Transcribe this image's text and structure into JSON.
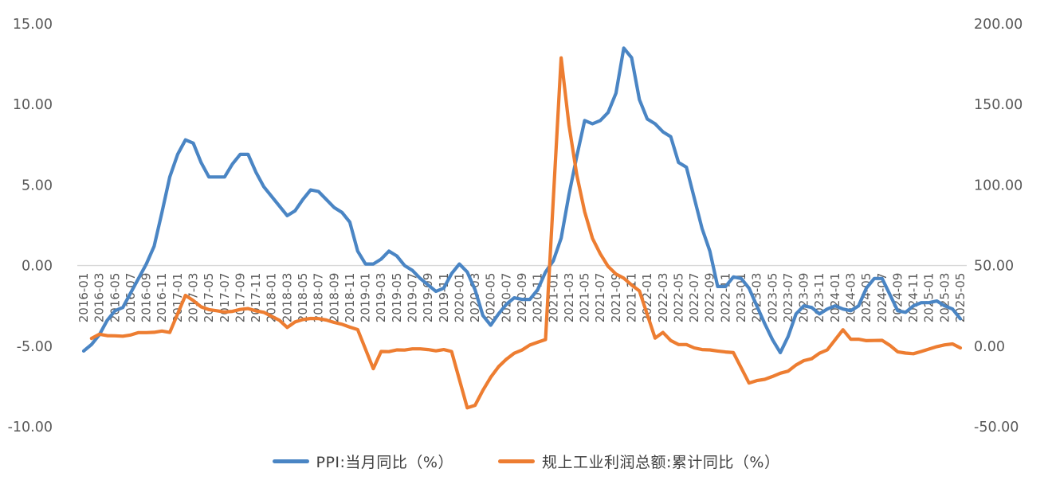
{
  "chart_data": {
    "type": "line",
    "title": "",
    "legend_position": "bottom",
    "grid": "horizontal-zero-only",
    "x_tick_every": 2,
    "x": [
      "2016-01",
      "2016-02",
      "2016-03",
      "2016-04",
      "2016-05",
      "2016-06",
      "2016-07",
      "2016-08",
      "2016-09",
      "2016-10",
      "2016-11",
      "2016-12",
      "2017-01",
      "2017-02",
      "2017-03",
      "2017-04",
      "2017-05",
      "2017-06",
      "2017-07",
      "2017-08",
      "2017-09",
      "2017-10",
      "2017-11",
      "2017-12",
      "2018-01",
      "2018-02",
      "2018-03",
      "2018-04",
      "2018-05",
      "2018-06",
      "2018-07",
      "2018-08",
      "2018-09",
      "2018-10",
      "2018-11",
      "2018-12",
      "2019-01",
      "2019-02",
      "2019-03",
      "2019-04",
      "2019-05",
      "2019-06",
      "2019-07",
      "2019-08",
      "2019-09",
      "2019-10",
      "2019-11",
      "2019-12",
      "2020-01",
      "2020-02",
      "2020-03",
      "2020-04",
      "2020-05",
      "2020-06",
      "2020-07",
      "2020-08",
      "2020-09",
      "2020-10",
      "2020-11",
      "2020-12",
      "2021-01",
      "2021-02",
      "2021-03",
      "2021-04",
      "2021-05",
      "2021-06",
      "2021-07",
      "2021-08",
      "2021-09",
      "2021-10",
      "2021-11",
      "2021-12",
      "2022-01",
      "2022-02",
      "2022-03",
      "2022-04",
      "2022-05",
      "2022-06",
      "2022-07",
      "2022-08",
      "2022-09",
      "2022-10",
      "2022-11",
      "2022-12",
      "2023-01",
      "2023-02",
      "2023-03",
      "2023-04",
      "2023-05",
      "2023-06",
      "2023-07",
      "2023-08",
      "2023-09",
      "2023-10",
      "2023-11",
      "2023-12",
      "2024-01",
      "2024-02",
      "2024-03",
      "2024-04",
      "2024-05",
      "2024-06",
      "2024-07",
      "2024-08",
      "2024-09",
      "2024-10",
      "2024-11",
      "2024-12",
      "2025-01",
      "2025-02",
      "2025-03",
      "2025-04",
      "2025-05"
    ],
    "left_axis": {
      "min": -10,
      "max": 15,
      "ticks": [
        15,
        10,
        5,
        0,
        -5,
        -10
      ],
      "decimals": 2
    },
    "right_axis": {
      "min": -50,
      "max": 200,
      "ticks": [
        200,
        150,
        100,
        50,
        0,
        -50
      ],
      "decimals": 2
    },
    "series": [
      {
        "name": "PPI:当月同比（%）",
        "axis": "left",
        "color": "#4A85C4",
        "values": [
          -5.3,
          -4.9,
          -4.3,
          -3.4,
          -2.8,
          -2.6,
          -1.7,
          -0.8,
          0.1,
          1.2,
          3.3,
          5.5,
          6.9,
          7.8,
          7.6,
          6.4,
          5.5,
          5.5,
          5.5,
          6.3,
          6.9,
          6.9,
          5.8,
          4.9,
          4.3,
          3.7,
          3.1,
          3.4,
          4.1,
          4.7,
          4.6,
          4.1,
          3.6,
          3.3,
          2.7,
          0.9,
          0.1,
          0.1,
          0.4,
          0.9,
          0.6,
          0.0,
          -0.3,
          -0.8,
          -1.2,
          -1.6,
          -1.4,
          -0.5,
          0.1,
          -0.4,
          -1.5,
          -3.1,
          -3.7,
          -3.0,
          -2.4,
          -2.0,
          -2.1,
          -2.1,
          -1.5,
          -0.4,
          0.3,
          1.7,
          4.4,
          6.8,
          9.0,
          8.8,
          9.0,
          9.5,
          10.7,
          13.5,
          12.9,
          10.3,
          9.1,
          8.8,
          8.3,
          8.0,
          6.4,
          6.1,
          4.2,
          2.3,
          0.9,
          -1.3,
          -1.3,
          -0.7,
          -0.8,
          -1.4,
          -2.5,
          -3.6,
          -4.6,
          -5.4,
          -4.4,
          -3.0,
          -2.5,
          -2.6,
          -3.0,
          -2.7,
          -2.5,
          -2.7,
          -2.8,
          -2.5,
          -1.4,
          -0.8,
          -0.8,
          -1.8,
          -2.8,
          -2.9,
          -2.5,
          -2.3,
          -2.3,
          -2.2,
          -2.5,
          -2.7,
          -3.3
        ]
      },
      {
        "name": "规上工业利润总额:累计同比（%）",
        "axis": "right",
        "color": "#ED7D31",
        "values": [
          null,
          4.8,
          7.4,
          6.5,
          6.4,
          6.2,
          6.9,
          8.4,
          8.4,
          8.6,
          9.4,
          8.5,
          null,
          31.5,
          28.3,
          24.4,
          22.7,
          22.0,
          21.2,
          21.6,
          22.8,
          23.3,
          21.9,
          21.0,
          null,
          16.1,
          11.6,
          15.0,
          16.5,
          17.2,
          17.1,
          16.2,
          14.7,
          13.6,
          11.8,
          10.3,
          null,
          -14.0,
          -3.3,
          -3.4,
          -2.3,
          -2.4,
          -1.7,
          -1.7,
          -2.1,
          -2.9,
          -2.1,
          -3.3,
          null,
          -38.3,
          -36.7,
          -27.4,
          -19.3,
          -12.8,
          -8.1,
          -4.4,
          -2.4,
          0.7,
          2.4,
          4.1,
          null,
          178.9,
          137.3,
          106.1,
          83.4,
          66.9,
          57.3,
          49.5,
          44.7,
          42.2,
          38.0,
          34.3,
          null,
          5.0,
          8.5,
          3.5,
          1.0,
          1.0,
          -1.1,
          -2.1,
          -2.3,
          -3.0,
          -3.6,
          -4.0,
          null,
          -22.9,
          -21.4,
          -20.6,
          -18.8,
          -16.8,
          -15.5,
          -11.7,
          -9.0,
          -7.8,
          -4.4,
          -2.3,
          null,
          10.2,
          4.3,
          4.3,
          3.4,
          3.5,
          3.6,
          0.5,
          -3.5,
          -4.3,
          -4.7,
          -3.3,
          null,
          -0.3,
          0.8,
          1.4,
          -1.1
        ]
      }
    ]
  },
  "colors": {
    "background": "#ffffff",
    "gridline": "#d9d9d9",
    "tick_text": "#595959",
    "legend_text": "#404040"
  }
}
